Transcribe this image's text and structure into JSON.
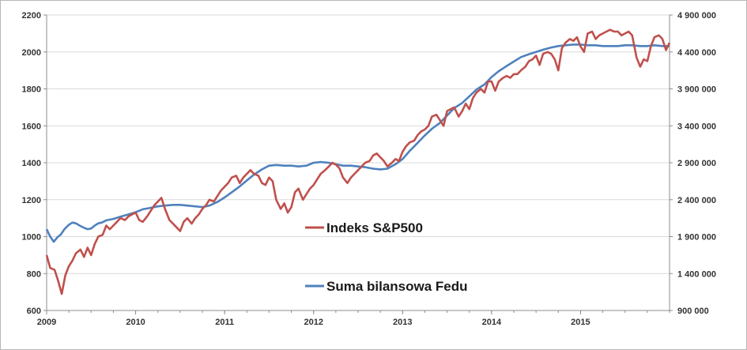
{
  "chart_data": {
    "type": "line",
    "title": "",
    "xlabel": "",
    "ylabel": "",
    "y2label": "",
    "x_ticks": [
      "2009",
      "2010",
      "2011",
      "2012",
      "2013",
      "2014",
      "2015"
    ],
    "x_range": [
      2009.0,
      2016.0
    ],
    "ylim": [
      600,
      2200
    ],
    "y_ticks": [
      "600",
      "800",
      "1000",
      "1200",
      "1400",
      "1600",
      "1800",
      "2000",
      "2200"
    ],
    "y2lim": [
      900000,
      4900000
    ],
    "y2_ticks": [
      "900 000",
      "1 400 000",
      "1 900 000",
      "2 400 000",
      "2 900 000",
      "3 400 000",
      "3 900 000",
      "4 400 000",
      "4 900 000"
    ],
    "grid": "horizontal",
    "legend": "inside-center",
    "series": [
      {
        "name": "Indeks S&P500",
        "axis": "left",
        "color": "#c0504d",
        "points": [
          [
            2009.0,
            900
          ],
          [
            2009.04,
            830
          ],
          [
            2009.09,
            820
          ],
          [
            2009.13,
            760
          ],
          [
            2009.17,
            690
          ],
          [
            2009.21,
            790
          ],
          [
            2009.25,
            840
          ],
          [
            2009.29,
            870
          ],
          [
            2009.33,
            910
          ],
          [
            2009.38,
            930
          ],
          [
            2009.42,
            890
          ],
          [
            2009.46,
            940
          ],
          [
            2009.5,
            900
          ],
          [
            2009.54,
            960
          ],
          [
            2009.58,
            1000
          ],
          [
            2009.63,
            1010
          ],
          [
            2009.67,
            1060
          ],
          [
            2009.71,
            1040
          ],
          [
            2009.75,
            1060
          ],
          [
            2009.79,
            1080
          ],
          [
            2009.83,
            1100
          ],
          [
            2009.88,
            1090
          ],
          [
            2009.92,
            1110
          ],
          [
            2009.96,
            1120
          ],
          [
            2010.0,
            1130
          ],
          [
            2010.04,
            1090
          ],
          [
            2010.08,
            1080
          ],
          [
            2010.13,
            1110
          ],
          [
            2010.17,
            1140
          ],
          [
            2010.21,
            1170
          ],
          [
            2010.25,
            1190
          ],
          [
            2010.29,
            1210
          ],
          [
            2010.33,
            1150
          ],
          [
            2010.38,
            1090
          ],
          [
            2010.42,
            1070
          ],
          [
            2010.46,
            1050
          ],
          [
            2010.5,
            1030
          ],
          [
            2010.54,
            1080
          ],
          [
            2010.58,
            1100
          ],
          [
            2010.63,
            1070
          ],
          [
            2010.67,
            1100
          ],
          [
            2010.71,
            1120
          ],
          [
            2010.75,
            1150
          ],
          [
            2010.79,
            1170
          ],
          [
            2010.83,
            1200
          ],
          [
            2010.88,
            1190
          ],
          [
            2010.92,
            1220
          ],
          [
            2010.96,
            1250
          ],
          [
            2011.0,
            1270
          ],
          [
            2011.04,
            1290
          ],
          [
            2011.08,
            1320
          ],
          [
            2011.13,
            1330
          ],
          [
            2011.17,
            1290
          ],
          [
            2011.21,
            1320
          ],
          [
            2011.25,
            1340
          ],
          [
            2011.29,
            1360
          ],
          [
            2011.33,
            1340
          ],
          [
            2011.38,
            1330
          ],
          [
            2011.42,
            1290
          ],
          [
            2011.46,
            1280
          ],
          [
            2011.5,
            1320
          ],
          [
            2011.54,
            1300
          ],
          [
            2011.58,
            1200
          ],
          [
            2011.63,
            1150
          ],
          [
            2011.67,
            1180
          ],
          [
            2011.71,
            1130
          ],
          [
            2011.75,
            1160
          ],
          [
            2011.79,
            1240
          ],
          [
            2011.83,
            1260
          ],
          [
            2011.88,
            1200
          ],
          [
            2011.92,
            1230
          ],
          [
            2011.96,
            1260
          ],
          [
            2012.0,
            1280
          ],
          [
            2012.04,
            1310
          ],
          [
            2012.08,
            1340
          ],
          [
            2012.13,
            1360
          ],
          [
            2012.17,
            1380
          ],
          [
            2012.21,
            1400
          ],
          [
            2012.25,
            1390
          ],
          [
            2012.29,
            1370
          ],
          [
            2012.33,
            1320
          ],
          [
            2012.38,
            1290
          ],
          [
            2012.42,
            1320
          ],
          [
            2012.46,
            1340
          ],
          [
            2012.5,
            1360
          ],
          [
            2012.54,
            1380
          ],
          [
            2012.58,
            1400
          ],
          [
            2012.63,
            1410
          ],
          [
            2012.67,
            1440
          ],
          [
            2012.71,
            1450
          ],
          [
            2012.75,
            1430
          ],
          [
            2012.79,
            1410
          ],
          [
            2012.83,
            1380
          ],
          [
            2012.88,
            1400
          ],
          [
            2012.92,
            1420
          ],
          [
            2012.96,
            1410
          ],
          [
            2013.0,
            1460
          ],
          [
            2013.04,
            1490
          ],
          [
            2013.08,
            1510
          ],
          [
            2013.13,
            1520
          ],
          [
            2013.17,
            1550
          ],
          [
            2013.21,
            1570
          ],
          [
            2013.25,
            1580
          ],
          [
            2013.29,
            1600
          ],
          [
            2013.33,
            1650
          ],
          [
            2013.38,
            1660
          ],
          [
            2013.42,
            1630
          ],
          [
            2013.46,
            1600
          ],
          [
            2013.5,
            1680
          ],
          [
            2013.54,
            1690
          ],
          [
            2013.58,
            1700
          ],
          [
            2013.63,
            1650
          ],
          [
            2013.67,
            1680
          ],
          [
            2013.71,
            1720
          ],
          [
            2013.75,
            1690
          ],
          [
            2013.79,
            1750
          ],
          [
            2013.83,
            1780
          ],
          [
            2013.88,
            1800
          ],
          [
            2013.92,
            1780
          ],
          [
            2013.96,
            1840
          ],
          [
            2014.0,
            1840
          ],
          [
            2014.04,
            1790
          ],
          [
            2014.08,
            1840
          ],
          [
            2014.13,
            1860
          ],
          [
            2014.17,
            1870
          ],
          [
            2014.21,
            1860
          ],
          [
            2014.25,
            1880
          ],
          [
            2014.29,
            1880
          ],
          [
            2014.33,
            1900
          ],
          [
            2014.38,
            1920
          ],
          [
            2014.42,
            1950
          ],
          [
            2014.46,
            1960
          ],
          [
            2014.5,
            1980
          ],
          [
            2014.54,
            1930
          ],
          [
            2014.58,
            1990
          ],
          [
            2014.63,
            2000
          ],
          [
            2014.67,
            1990
          ],
          [
            2014.71,
            1960
          ],
          [
            2014.75,
            1900
          ],
          [
            2014.79,
            2020
          ],
          [
            2014.83,
            2050
          ],
          [
            2014.88,
            2070
          ],
          [
            2014.92,
            2060
          ],
          [
            2014.96,
            2080
          ],
          [
            2015.0,
            2030
          ],
          [
            2015.04,
            2000
          ],
          [
            2015.08,
            2100
          ],
          [
            2015.13,
            2110
          ],
          [
            2015.17,
            2070
          ],
          [
            2015.21,
            2090
          ],
          [
            2015.25,
            2100
          ],
          [
            2015.29,
            2110
          ],
          [
            2015.33,
            2120
          ],
          [
            2015.38,
            2110
          ],
          [
            2015.42,
            2110
          ],
          [
            2015.46,
            2090
          ],
          [
            2015.5,
            2100
          ],
          [
            2015.54,
            2110
          ],
          [
            2015.58,
            2090
          ],
          [
            2015.63,
            1970
          ],
          [
            2015.67,
            1920
          ],
          [
            2015.71,
            1960
          ],
          [
            2015.75,
            1950
          ],
          [
            2015.79,
            2030
          ],
          [
            2015.83,
            2080
          ],
          [
            2015.88,
            2090
          ],
          [
            2015.92,
            2070
          ],
          [
            2015.96,
            2010
          ],
          [
            2016.0,
            2050
          ]
        ]
      },
      {
        "name": "Suma bilansowa Fedu",
        "axis": "right",
        "color": "#4f81bd",
        "points": [
          [
            2009.0,
            2000000
          ],
          [
            2009.04,
            1900000
          ],
          [
            2009.08,
            1830000
          ],
          [
            2009.12,
            1890000
          ],
          [
            2009.16,
            1930000
          ],
          [
            2009.2,
            2000000
          ],
          [
            2009.25,
            2060000
          ],
          [
            2009.29,
            2090000
          ],
          [
            2009.33,
            2080000
          ],
          [
            2009.37,
            2050000
          ],
          [
            2009.42,
            2020000
          ],
          [
            2009.46,
            2000000
          ],
          [
            2009.5,
            2010000
          ],
          [
            2009.54,
            2050000
          ],
          [
            2009.58,
            2080000
          ],
          [
            2009.62,
            2090000
          ],
          [
            2009.67,
            2120000
          ],
          [
            2009.75,
            2140000
          ],
          [
            2009.83,
            2170000
          ],
          [
            2009.92,
            2200000
          ],
          [
            2010.0,
            2230000
          ],
          [
            2010.08,
            2270000
          ],
          [
            2010.17,
            2290000
          ],
          [
            2010.25,
            2310000
          ],
          [
            2010.33,
            2320000
          ],
          [
            2010.42,
            2330000
          ],
          [
            2010.5,
            2330000
          ],
          [
            2010.58,
            2320000
          ],
          [
            2010.67,
            2310000
          ],
          [
            2010.75,
            2300000
          ],
          [
            2010.83,
            2320000
          ],
          [
            2010.92,
            2370000
          ],
          [
            2011.0,
            2430000
          ],
          [
            2011.08,
            2500000
          ],
          [
            2011.17,
            2580000
          ],
          [
            2011.25,
            2660000
          ],
          [
            2011.33,
            2740000
          ],
          [
            2011.42,
            2810000
          ],
          [
            2011.5,
            2860000
          ],
          [
            2011.58,
            2870000
          ],
          [
            2011.67,
            2860000
          ],
          [
            2011.75,
            2860000
          ],
          [
            2011.83,
            2850000
          ],
          [
            2011.92,
            2860000
          ],
          [
            2012.0,
            2900000
          ],
          [
            2012.08,
            2910000
          ],
          [
            2012.17,
            2900000
          ],
          [
            2012.25,
            2880000
          ],
          [
            2012.33,
            2860000
          ],
          [
            2012.42,
            2860000
          ],
          [
            2012.5,
            2850000
          ],
          [
            2012.58,
            2840000
          ],
          [
            2012.67,
            2820000
          ],
          [
            2012.75,
            2810000
          ],
          [
            2012.83,
            2820000
          ],
          [
            2012.92,
            2880000
          ],
          [
            2013.0,
            2950000
          ],
          [
            2013.08,
            3060000
          ],
          [
            2013.17,
            3170000
          ],
          [
            2013.25,
            3270000
          ],
          [
            2013.33,
            3360000
          ],
          [
            2013.42,
            3440000
          ],
          [
            2013.5,
            3540000
          ],
          [
            2013.58,
            3640000
          ],
          [
            2013.67,
            3710000
          ],
          [
            2013.75,
            3800000
          ],
          [
            2013.83,
            3890000
          ],
          [
            2013.92,
            3960000
          ],
          [
            2014.0,
            4060000
          ],
          [
            2014.08,
            4140000
          ],
          [
            2014.17,
            4210000
          ],
          [
            2014.25,
            4270000
          ],
          [
            2014.33,
            4330000
          ],
          [
            2014.42,
            4370000
          ],
          [
            2014.5,
            4400000
          ],
          [
            2014.58,
            4430000
          ],
          [
            2014.67,
            4460000
          ],
          [
            2014.75,
            4480000
          ],
          [
            2014.83,
            4490000
          ],
          [
            2014.92,
            4500000
          ],
          [
            2015.0,
            4500000
          ],
          [
            2015.08,
            4490000
          ],
          [
            2015.17,
            4490000
          ],
          [
            2015.25,
            4480000
          ],
          [
            2015.33,
            4480000
          ],
          [
            2015.42,
            4480000
          ],
          [
            2015.5,
            4490000
          ],
          [
            2015.58,
            4490000
          ],
          [
            2015.67,
            4480000
          ],
          [
            2015.75,
            4480000
          ],
          [
            2015.83,
            4490000
          ],
          [
            2015.92,
            4480000
          ],
          [
            2016.0,
            4480000
          ]
        ]
      }
    ]
  }
}
